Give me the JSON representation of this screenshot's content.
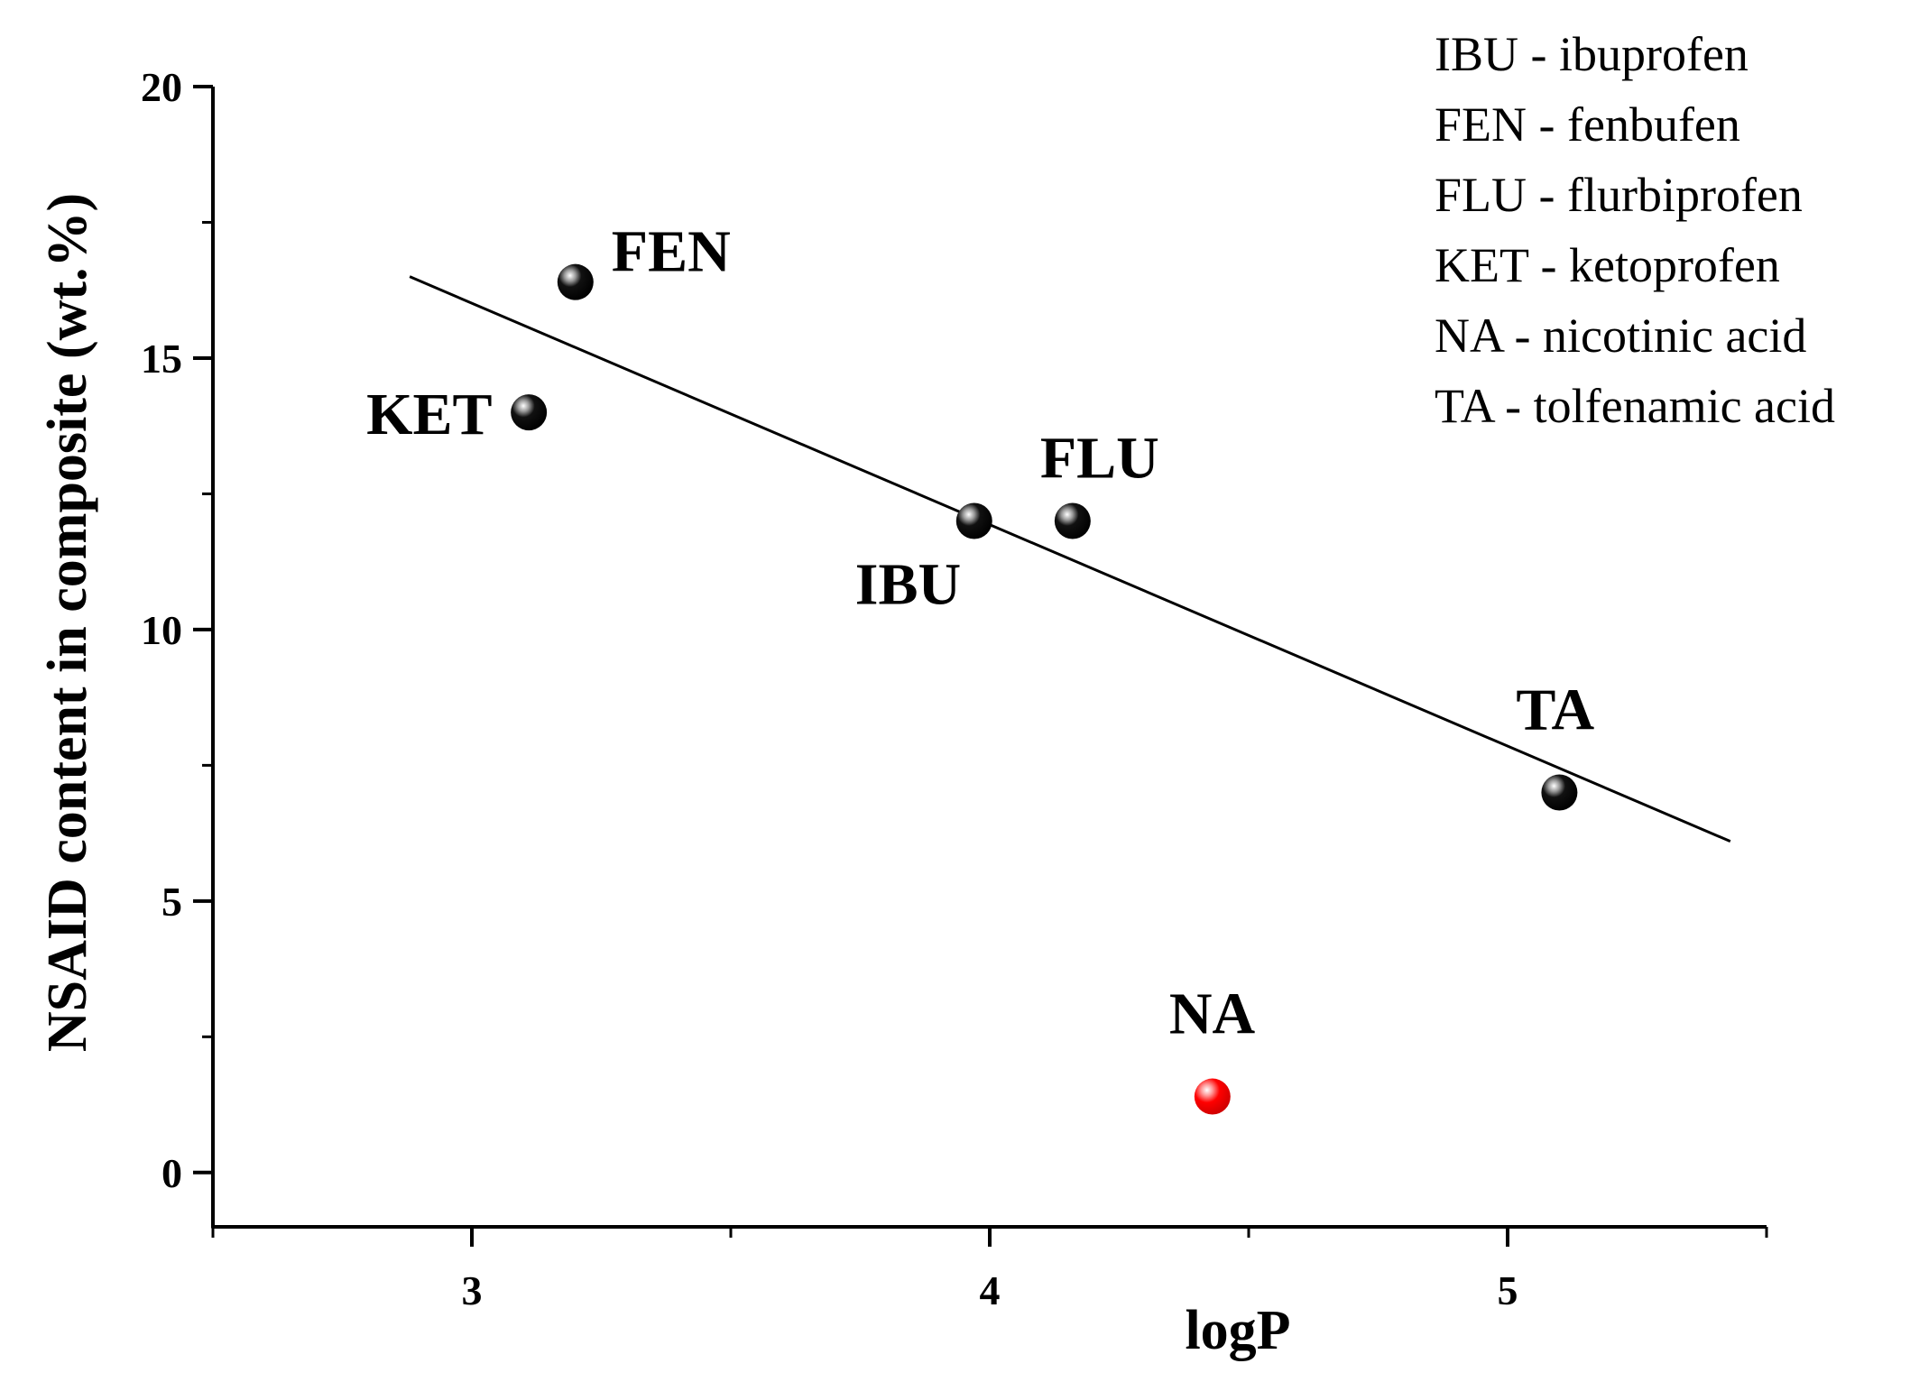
{
  "chart_data": {
    "type": "scatter",
    "xlabel": "logP",
    "ylabel": "NSAID content in composite (wt.%)",
    "xlim": [
      2.5,
      5.5
    ],
    "ylim": [
      -1,
      20
    ],
    "x_ticks": [
      3,
      4,
      5
    ],
    "x_minor_ticks": [
      2.5,
      3.5,
      4.5,
      5.5
    ],
    "y_ticks": [
      0,
      5,
      10,
      15,
      20
    ],
    "y_minor_ticks": [
      2.5,
      7.5,
      12.5,
      17.5
    ],
    "points": [
      {
        "label": "IBU",
        "x": 3.97,
        "y": 12.0,
        "color": "#000000",
        "label_pos": "below-left"
      },
      {
        "label": "FEN",
        "x": 3.2,
        "y": 16.4,
        "color": "#000000",
        "label_pos": "upper-right"
      },
      {
        "label": "FLU",
        "x": 4.16,
        "y": 12.0,
        "color": "#000000",
        "label_pos": "above-right"
      },
      {
        "label": "KET",
        "x": 3.11,
        "y": 14.0,
        "color": "#000000",
        "label_pos": "left"
      },
      {
        "label": "NA",
        "x": 4.43,
        "y": 1.4,
        "color": "#ff0000",
        "label_pos": "above"
      },
      {
        "label": "TA",
        "x": 5.1,
        "y": 7.0,
        "color": "#000000",
        "label_pos": "above"
      }
    ],
    "fit_line": {
      "x1": 2.88,
      "y1": 16.5,
      "x2": 5.43,
      "y2": 6.1
    },
    "legend_position": "top-right",
    "legend": [
      "IBU - ibuprofen",
      "FEN - fenbufen",
      "FLU - flurbiprofen",
      "KET - ketoprofen",
      "NA - nicotinic acid",
      "TA - tolfenamic acid"
    ]
  }
}
